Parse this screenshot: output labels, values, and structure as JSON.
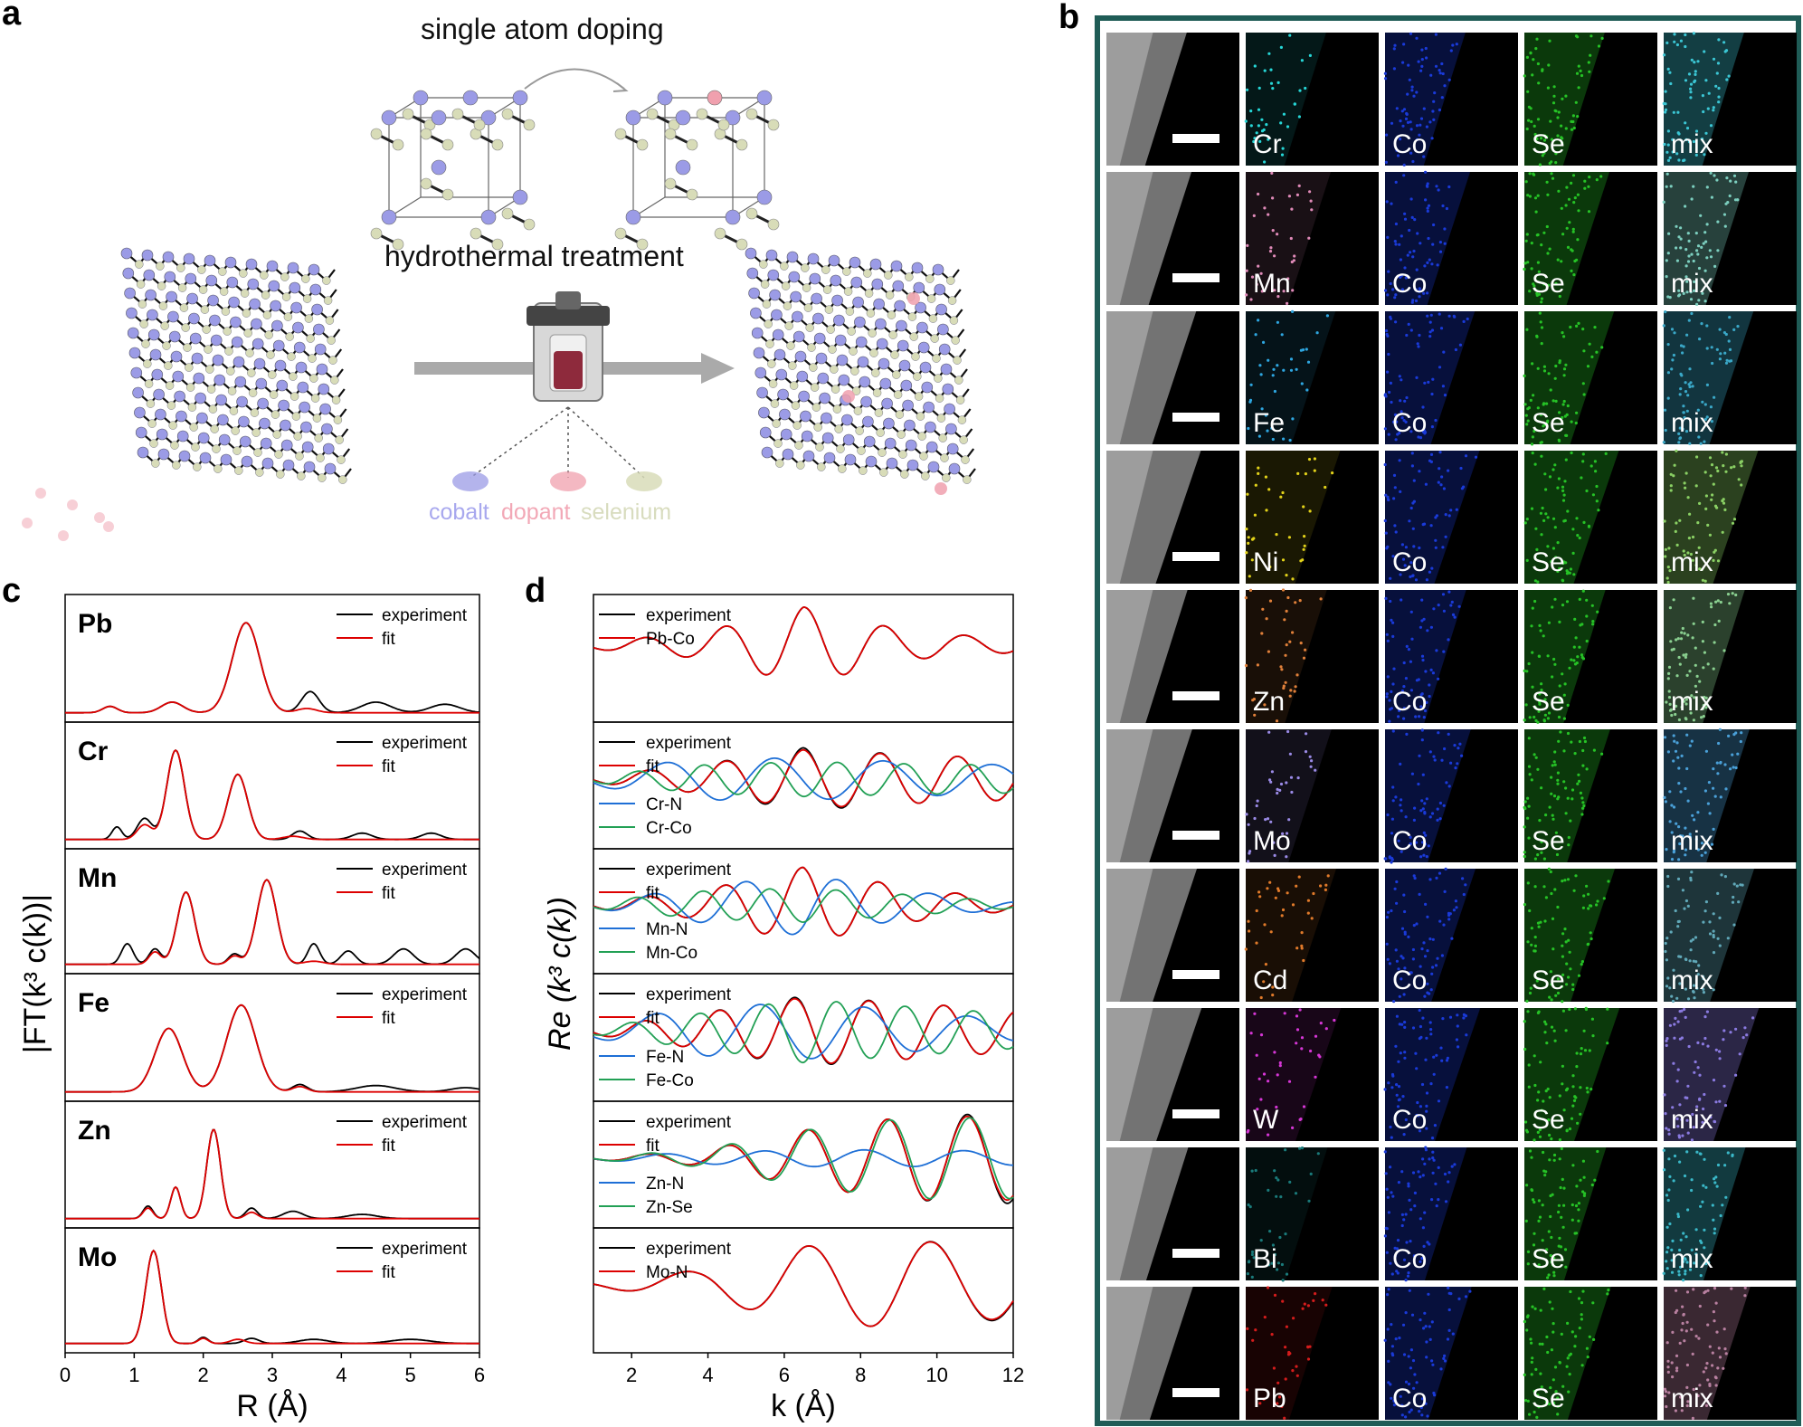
{
  "panels": {
    "a": {
      "label": "a",
      "title_top": "single atom doping",
      "title_mid": "hydrothermal treatment",
      "legend": [
        {
          "text": "cobalt",
          "color": "#9b9be6"
        },
        {
          "text": "dopant",
          "color": "#f0a0ae"
        },
        {
          "text": "selenium",
          "color": "#d8dcb8"
        }
      ]
    },
    "b": {
      "label": "b",
      "frame_color": "#1f5c56",
      "rows": [
        {
          "dopant": "Cr",
          "dopant_color": "#26d6d6",
          "mix_color": "#3bc6d4"
        },
        {
          "dopant": "Mn",
          "dopant_color": "#e08ab8",
          "mix_color": "#7ccfbf"
        },
        {
          "dopant": "Fe",
          "dopant_color": "#2ea6e0",
          "mix_color": "#3aa8c8"
        },
        {
          "dopant": "Ni",
          "dopant_color": "#e2d21a",
          "mix_color": "#8ad064"
        },
        {
          "dopant": "Zn",
          "dopant_color": "#e0803a",
          "mix_color": "#8ad090"
        },
        {
          "dopant": "Mo",
          "dopant_color": "#9a8ae6",
          "mix_color": "#4aa0d8"
        },
        {
          "dopant": "Cd",
          "dopant_color": "#e07a2a",
          "mix_color": "#60a8b8"
        },
        {
          "dopant": "W",
          "dopant_color": "#d636d6",
          "mix_color": "#8a7ae0"
        },
        {
          "dopant": "Bi",
          "dopant_color": "#1a7a7a",
          "mix_color": "#3ab8c8"
        },
        {
          "dopant": "Pb",
          "dopant_color": "#d41c1c",
          "mix_color": "#b880a0"
        }
      ],
      "co_label": "Co",
      "co_color": "#1a3ad8",
      "se_label": "Se",
      "se_color": "#26c226",
      "mix_label": "mix"
    },
    "c": {
      "label": "c",
      "ylabel": "|FT(k³ c(k))|",
      "xlabel": "R (Å)",
      "xticks": [
        "0",
        "1",
        "2",
        "3",
        "4",
        "5",
        "6"
      ],
      "legend": [
        "experiment",
        "fit"
      ]
    },
    "d": {
      "label": "d",
      "ylabel": "Re (k³ c(k))",
      "xlabel": "k (Å)",
      "xticks": [
        "2",
        "4",
        "6",
        "8",
        "10",
        "12"
      ]
    }
  },
  "chart_data": [
    {
      "type": "line",
      "panel": "c",
      "xlabel": "R (Å)",
      "ylabel": "|FT(k³ c(k))|",
      "xlim": [
        0,
        6
      ],
      "subplots": [
        {
          "element": "Pb",
          "series": [
            {
              "name": "experiment",
              "color": "#000000",
              "peaks": [
                [
                  0.65,
                  0.06,
                  0.15
                ],
                [
                  1.55,
                  0.1,
                  0.22
                ],
                [
                  2.62,
                  0.85,
                  0.28
                ],
                [
                  3.55,
                  0.2,
                  0.18
                ],
                [
                  4.5,
                  0.1,
                  0.3
                ],
                [
                  5.5,
                  0.08,
                  0.3
                ]
              ]
            },
            {
              "name": "fit",
              "color": "#dd0000",
              "peaks": [
                [
                  0.65,
                  0.06,
                  0.15
                ],
                [
                  1.55,
                  0.1,
                  0.22
                ],
                [
                  2.62,
                  0.85,
                  0.28
                ],
                [
                  3.5,
                  0.04,
                  0.2
                ]
              ]
            }
          ]
        },
        {
          "element": "Cr",
          "series": [
            {
              "name": "experiment",
              "color": "#000000",
              "peaks": [
                [
                  0.75,
                  0.12,
                  0.1
                ],
                [
                  1.15,
                  0.2,
                  0.15
                ],
                [
                  1.6,
                  0.85,
                  0.18
                ],
                [
                  2.5,
                  0.62,
                  0.2
                ],
                [
                  3.4,
                  0.08,
                  0.15
                ],
                [
                  4.3,
                  0.06,
                  0.2
                ],
                [
                  5.3,
                  0.06,
                  0.2
                ]
              ]
            },
            {
              "name": "fit",
              "color": "#dd0000",
              "peaks": [
                [
                  1.15,
                  0.14,
                  0.15
                ],
                [
                  1.6,
                  0.85,
                  0.18
                ],
                [
                  2.5,
                  0.62,
                  0.2
                ],
                [
                  3.3,
                  0.03,
                  0.2
                ]
              ]
            }
          ]
        },
        {
          "element": "Mn",
          "series": [
            {
              "name": "experiment",
              "color": "#000000",
              "peaks": [
                [
                  0.9,
                  0.2,
                  0.12
                ],
                [
                  1.3,
                  0.15,
                  0.12
                ],
                [
                  1.75,
                  0.7,
                  0.18
                ],
                [
                  2.45,
                  0.1,
                  0.12
                ],
                [
                  2.92,
                  0.82,
                  0.2
                ],
                [
                  3.6,
                  0.2,
                  0.12
                ],
                [
                  4.1,
                  0.13,
                  0.15
                ],
                [
                  4.9,
                  0.15,
                  0.2
                ],
                [
                  5.8,
                  0.15,
                  0.2
                ]
              ]
            },
            {
              "name": "fit",
              "color": "#dd0000",
              "peaks": [
                [
                  1.3,
                  0.12,
                  0.12
                ],
                [
                  1.75,
                  0.7,
                  0.18
                ],
                [
                  2.45,
                  0.08,
                  0.12
                ],
                [
                  2.92,
                  0.82,
                  0.2
                ],
                [
                  3.6,
                  0.03,
                  0.2
                ]
              ]
            }
          ]
        },
        {
          "element": "Fe",
          "series": [
            {
              "name": "experiment",
              "color": "#000000",
              "peaks": [
                [
                  1.5,
                  0.6,
                  0.28
                ],
                [
                  2.55,
                  0.82,
                  0.3
                ],
                [
                  3.4,
                  0.07,
                  0.15
                ],
                [
                  4.5,
                  0.06,
                  0.4
                ],
                [
                  5.8,
                  0.04,
                  0.3
                ]
              ]
            },
            {
              "name": "fit",
              "color": "#dd0000",
              "peaks": [
                [
                  1.5,
                  0.6,
                  0.28
                ],
                [
                  2.55,
                  0.82,
                  0.3
                ],
                [
                  3.4,
                  0.05,
                  0.15
                ]
              ]
            }
          ]
        },
        {
          "element": "Zn",
          "series": [
            {
              "name": "experiment",
              "color": "#000000",
              "peaks": [
                [
                  1.2,
                  0.12,
                  0.1
                ],
                [
                  1.6,
                  0.3,
                  0.1
                ],
                [
                  2.15,
                  0.85,
                  0.14
                ],
                [
                  2.7,
                  0.1,
                  0.12
                ],
                [
                  3.3,
                  0.07,
                  0.2
                ],
                [
                  4.3,
                  0.04,
                  0.3
                ]
              ]
            },
            {
              "name": "fit",
              "color": "#dd0000",
              "peaks": [
                [
                  1.2,
                  0.1,
                  0.1
                ],
                [
                  1.6,
                  0.3,
                  0.1
                ],
                [
                  2.15,
                  0.85,
                  0.14
                ],
                [
                  2.7,
                  0.06,
                  0.12
                ]
              ]
            }
          ]
        },
        {
          "element": "Mo",
          "series": [
            {
              "name": "experiment",
              "color": "#000000",
              "peaks": [
                [
                  1.28,
                  0.9,
                  0.16
                ],
                [
                  2.0,
                  0.06,
                  0.1
                ],
                [
                  2.7,
                  0.05,
                  0.15
                ],
                [
                  3.6,
                  0.04,
                  0.3
                ],
                [
                  5.0,
                  0.04,
                  0.4
                ]
              ]
            },
            {
              "name": "fit",
              "color": "#dd0000",
              "peaks": [
                [
                  1.28,
                  0.9,
                  0.16
                ],
                [
                  2.0,
                  0.05,
                  0.1
                ],
                [
                  2.5,
                  0.04,
                  0.15
                ]
              ]
            }
          ]
        }
      ]
    },
    {
      "type": "line",
      "panel": "d",
      "xlabel": "k (Å)",
      "ylabel": "Re (k³ c(k))",
      "xlim": [
        1,
        12
      ],
      "subplots": [
        {
          "legend": [
            "experiment",
            "Pb-Co"
          ],
          "series": [
            {
              "name": "experiment",
              "color": "#000000",
              "amp": [
                0.05,
                0.18,
                0.55,
                0.2,
                0.1
              ],
              "freq": 3.0,
              "phase": 0.8
            },
            {
              "name": "Pb-Co",
              "color": "#dd0000",
              "amp": [
                0.05,
                0.18,
                0.55,
                0.2,
                0.1
              ],
              "freq": 3.0,
              "phase": 0.8
            }
          ]
        },
        {
          "legend": [
            "experiment",
            "fit",
            "Cr-N",
            "Cr-Co"
          ],
          "series": [
            {
              "name": "experiment",
              "color": "#000000",
              "amp": [
                0.05,
                0.2,
                0.45,
                0.35,
                0.3
              ],
              "freq": 3.1,
              "phase": 0.3
            },
            {
              "name": "fit",
              "color": "#dd0000",
              "amp": [
                0.05,
                0.2,
                0.42,
                0.35,
                0.3
              ],
              "freq": 3.1,
              "phase": 0.3
            },
            {
              "name": "Cr-N",
              "color": "#1e6fd6",
              "amp": [
                0.1,
                0.3,
                0.3,
                0.25,
                0.2
              ],
              "freq": 2.2,
              "phase": 1.5
            },
            {
              "name": "Cr-Co",
              "color": "#22a055",
              "amp": [
                0.05,
                0.2,
                0.25,
                0.22,
                0.2
              ],
              "freq": 3.6,
              "phase": 0.1
            }
          ]
        },
        {
          "legend": [
            "experiment",
            "fit",
            "Mn-N",
            "Mn-Co"
          ],
          "series": [
            {
              "name": "experiment",
              "color": "#000000",
              "amp": [
                0.05,
                0.2,
                0.55,
                0.25,
                0.08
              ],
              "freq": 3.1,
              "phase": 0.4
            },
            {
              "name": "fit",
              "color": "#dd0000",
              "amp": [
                0.05,
                0.2,
                0.55,
                0.25,
                0.08
              ],
              "freq": 3.1,
              "phase": 0.4
            },
            {
              "name": "Mn-N",
              "color": "#1e6fd6",
              "amp": [
                0.05,
                0.25,
                0.45,
                0.2,
                0.05
              ],
              "freq": 2.6,
              "phase": 1.2
            },
            {
              "name": "Mn-Co",
              "color": "#22a055",
              "amp": [
                0.05,
                0.2,
                0.25,
                0.15,
                0.05
              ],
              "freq": 3.6,
              "phase": 0.2
            }
          ]
        },
        {
          "legend": [
            "experiment",
            "fit",
            "Fe-N",
            "Fe-Co"
          ],
          "series": [
            {
              "name": "experiment",
              "color": "#000000",
              "amp": [
                0.05,
                0.25,
                0.5,
                0.4,
                0.3
              ],
              "freq": 3.2,
              "phase": 0.4
            },
            {
              "name": "fit",
              "color": "#dd0000",
              "amp": [
                0.05,
                0.25,
                0.48,
                0.4,
                0.3
              ],
              "freq": 3.2,
              "phase": 0.4
            },
            {
              "name": "Fe-N",
              "color": "#1e6fd6",
              "amp": [
                0.1,
                0.35,
                0.4,
                0.3,
                0.15
              ],
              "freq": 2.3,
              "phase": 1.8
            },
            {
              "name": "Fe-Co",
              "color": "#22a055",
              "amp": [
                0.05,
                0.25,
                0.45,
                0.35,
                0.25
              ],
              "freq": 3.5,
              "phase": 0.9
            }
          ]
        },
        {
          "legend": [
            "experiment",
            "fit",
            "Zn-N",
            "Zn-Se"
          ],
          "series": [
            {
              "name": "experiment",
              "color": "#000000",
              "amp": [
                0.02,
                0.1,
                0.4,
                0.6,
                0.65
              ],
              "freq": 3.0,
              "phase": 0.6
            },
            {
              "name": "fit",
              "color": "#dd0000",
              "amp": [
                0.02,
                0.1,
                0.4,
                0.6,
                0.6
              ],
              "freq": 3.0,
              "phase": 0.6
            },
            {
              "name": "Zn-N",
              "color": "#1e6fd6",
              "amp": [
                0.03,
                0.08,
                0.12,
                0.12,
                0.1
              ],
              "freq": 2.4,
              "phase": 1.0
            },
            {
              "name": "Zn-Se",
              "color": "#22a055",
              "amp": [
                0.02,
                0.12,
                0.4,
                0.58,
                0.58
              ],
              "freq": 3.0,
              "phase": 0.4
            }
          ]
        },
        {
          "legend": [
            "experiment",
            "Mo-N"
          ],
          "series": [
            {
              "name": "experiment",
              "color": "#000000",
              "amp": [
                0.05,
                0.2,
                0.55,
                0.65,
                0.5
              ],
              "freq": 1.95,
              "phase": 1.2
            },
            {
              "name": "Mo-N",
              "color": "#dd0000",
              "amp": [
                0.05,
                0.2,
                0.55,
                0.65,
                0.48
              ],
              "freq": 1.95,
              "phase": 1.2
            }
          ]
        }
      ]
    }
  ]
}
